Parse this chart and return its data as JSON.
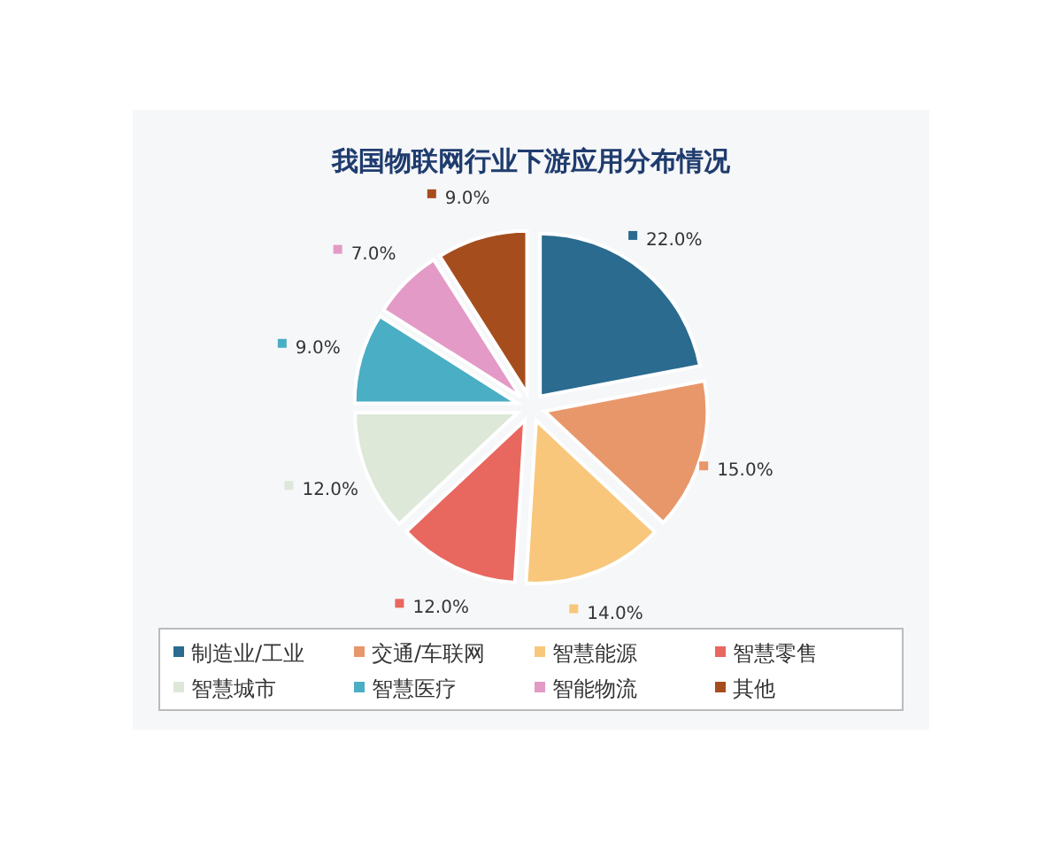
{
  "chart_data": {
    "type": "pie",
    "title": "我国物联网行业下游应用分布情况",
    "categories": [
      "制造业/工业",
      "交通/车联网",
      "智慧能源",
      "智慧零售",
      "智慧城市",
      "智慧医疗",
      "智能物流",
      "其他"
    ],
    "values": [
      22,
      15,
      14,
      12,
      12,
      9,
      7,
      9
    ],
    "value_labels": [
      "22.0%",
      "15.0%",
      "14.0%",
      "12.0%",
      "12.0%",
      "9.0%",
      "7.0%",
      "9.0%"
    ],
    "colors": [
      "#2a6b8f",
      "#e8976b",
      "#f8c77b",
      "#e8675f",
      "#dde8d8",
      "#4aaec4",
      "#e39ac6",
      "#a64d1e"
    ],
    "legend": "bottom"
  }
}
